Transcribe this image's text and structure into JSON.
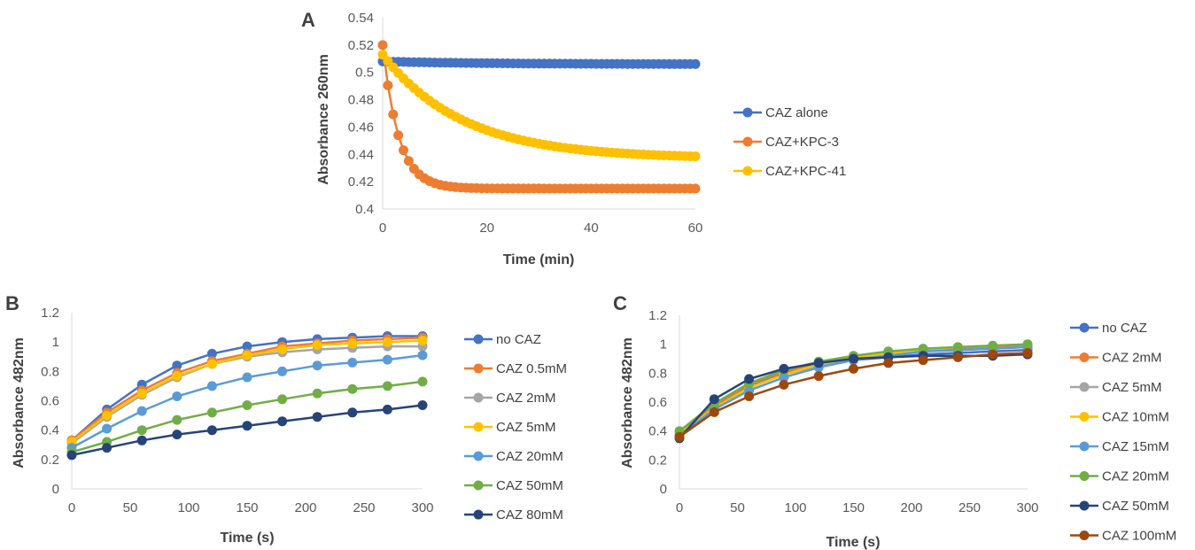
{
  "chart_data": [
    {
      "panel": "A",
      "type": "line",
      "xlabel": "Time (min)",
      "ylabel": "Absorbance 260nm",
      "xlim": [
        0,
        60
      ],
      "ylim": [
        0.4,
        0.54
      ],
      "xticks": [
        "0",
        "20",
        "40",
        "60"
      ],
      "yticks": [
        "0.4",
        "0.42",
        "0.44",
        "0.46",
        "0.48",
        "0.5",
        "0.52",
        "0.54"
      ],
      "grid": false,
      "legend_position": "right",
      "x_step": 1,
      "series": [
        {
          "name": "CAZ alone",
          "color": "#4472C4",
          "fn": {
            "type": "exp",
            "y0": 0.508,
            "yinf": 0.506,
            "k": 0.05
          }
        },
        {
          "name": "CAZ+KPC-3",
          "color": "#ED7D31",
          "fn": {
            "type": "exp",
            "y0": 0.52,
            "yinf": 0.415,
            "k": 0.33
          }
        },
        {
          "name": "CAZ+KPC-41",
          "color": "#FFC000",
          "fn": {
            "type": "exp",
            "y0": 0.513,
            "yinf": 0.437,
            "k": 0.065
          }
        }
      ]
    },
    {
      "panel": "B",
      "type": "line",
      "xlabel": "Time (s)",
      "ylabel": "Absorbance 482nm",
      "xlim": [
        0,
        300
      ],
      "ylim": [
        0,
        1.2
      ],
      "xticks": [
        "0",
        "50",
        "100",
        "150",
        "200",
        "250",
        "300"
      ],
      "yticks": [
        "0",
        "0.2",
        "0.4",
        "0.6",
        "0.8",
        "1",
        "1.2"
      ],
      "grid": false,
      "legend_position": "right",
      "x": [
        0,
        30,
        60,
        90,
        120,
        150,
        180,
        210,
        240,
        270,
        300
      ],
      "series": [
        {
          "name": "no CAZ",
          "color": "#4472C4",
          "values": [
            0.33,
            0.54,
            0.71,
            0.84,
            0.92,
            0.97,
            1.0,
            1.02,
            1.03,
            1.04,
            1.04
          ]
        },
        {
          "name": "CAZ 0.5mM",
          "color": "#ED7D31",
          "values": [
            0.33,
            0.52,
            0.67,
            0.79,
            0.87,
            0.92,
            0.97,
            0.99,
            1.01,
            1.02,
            1.03
          ]
        },
        {
          "name": "CAZ 2mM",
          "color": "#A5A5A5",
          "values": [
            0.31,
            0.49,
            0.64,
            0.76,
            0.85,
            0.9,
            0.93,
            0.95,
            0.96,
            0.97,
            0.97
          ]
        },
        {
          "name": "CAZ 5mM",
          "color": "#FFC000",
          "values": [
            0.32,
            0.5,
            0.65,
            0.77,
            0.85,
            0.91,
            0.95,
            0.98,
            0.99,
            1.0,
            1.01
          ]
        },
        {
          "name": "CAZ 20mM",
          "color": "#5B9BD5",
          "values": [
            0.28,
            0.41,
            0.53,
            0.63,
            0.7,
            0.76,
            0.8,
            0.84,
            0.86,
            0.88,
            0.91
          ]
        },
        {
          "name": "CAZ 50mM",
          "color": "#70AD47",
          "values": [
            0.25,
            0.32,
            0.4,
            0.47,
            0.52,
            0.57,
            0.61,
            0.65,
            0.68,
            0.7,
            0.73
          ]
        },
        {
          "name": "CAZ 80mM",
          "color": "#264478",
          "values": [
            0.23,
            0.28,
            0.33,
            0.37,
            0.4,
            0.43,
            0.46,
            0.49,
            0.52,
            0.54,
            0.57
          ]
        }
      ]
    },
    {
      "panel": "C",
      "type": "line",
      "xlabel": "Time (s)",
      "ylabel": "Absorbance 482nm",
      "xlim": [
        0,
        300
      ],
      "ylim": [
        0,
        1.2
      ],
      "xticks": [
        "0",
        "50",
        "100",
        "150",
        "200",
        "250",
        "300"
      ],
      "yticks": [
        "0",
        "0.2",
        "0.4",
        "0.6",
        "0.8",
        "1",
        "1.2"
      ],
      "grid": false,
      "legend_position": "right",
      "x": [
        0,
        30,
        60,
        90,
        120,
        150,
        180,
        210,
        240,
        270,
        300
      ],
      "series": [
        {
          "name": "no CAZ",
          "color": "#4472C4",
          "values": [
            0.38,
            0.57,
            0.71,
            0.8,
            0.85,
            0.89,
            0.91,
            0.93,
            0.94,
            0.95,
            0.96
          ]
        },
        {
          "name": "CAZ 2mM",
          "color": "#ED7D31",
          "values": [
            0.39,
            0.58,
            0.72,
            0.81,
            0.87,
            0.91,
            0.94,
            0.96,
            0.97,
            0.98,
            0.99
          ]
        },
        {
          "name": "CAZ 5mM",
          "color": "#A5A5A5",
          "values": [
            0.37,
            0.56,
            0.7,
            0.79,
            0.85,
            0.9,
            0.93,
            0.95,
            0.96,
            0.97,
            0.98
          ]
        },
        {
          "name": "CAZ 10mM",
          "color": "#FFC000",
          "values": [
            0.38,
            0.56,
            0.7,
            0.79,
            0.86,
            0.91,
            0.94,
            0.96,
            0.98,
            0.99,
            1.0
          ]
        },
        {
          "name": "CAZ 15mM",
          "color": "#5B9BD5",
          "values": [
            0.37,
            0.55,
            0.68,
            0.77,
            0.84,
            0.89,
            0.92,
            0.95,
            0.96,
            0.97,
            0.98
          ]
        },
        {
          "name": "CAZ 20mM",
          "color": "#70AD47",
          "values": [
            0.4,
            0.59,
            0.73,
            0.82,
            0.88,
            0.92,
            0.95,
            0.97,
            0.98,
            0.99,
            1.0
          ]
        },
        {
          "name": "CAZ 50mM",
          "color": "#264478",
          "values": [
            0.35,
            0.62,
            0.76,
            0.83,
            0.87,
            0.9,
            0.91,
            0.92,
            0.92,
            0.92,
            0.93
          ]
        },
        {
          "name": "CAZ 100mM",
          "color": "#9E480E",
          "values": [
            0.36,
            0.53,
            0.64,
            0.72,
            0.78,
            0.83,
            0.87,
            0.89,
            0.91,
            0.93,
            0.94
          ]
        }
      ]
    }
  ]
}
